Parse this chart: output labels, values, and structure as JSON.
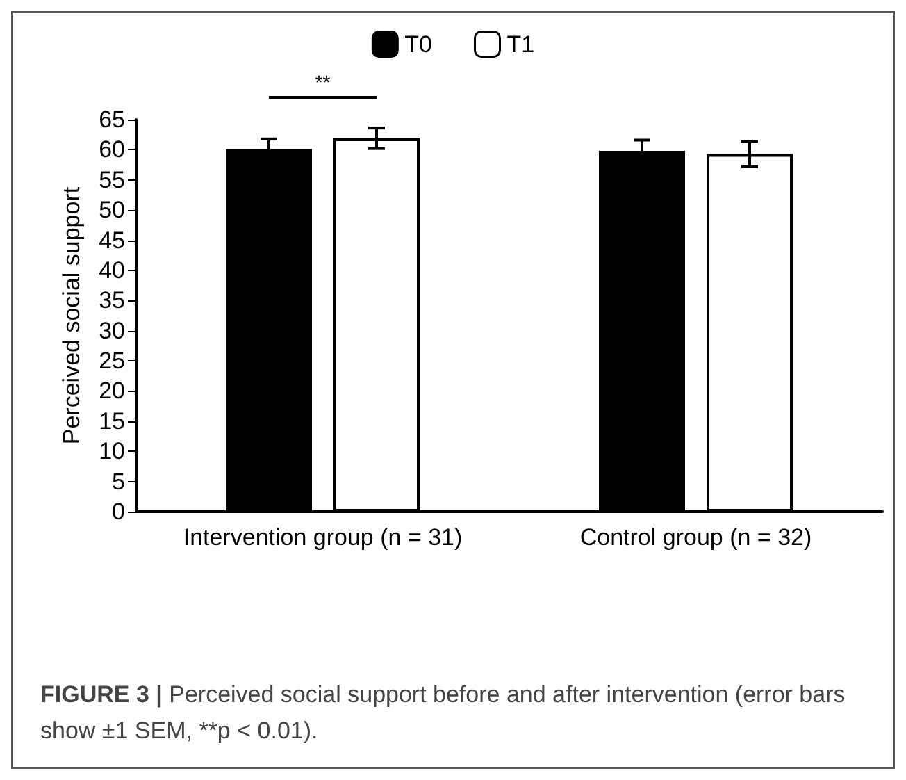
{
  "chart_data": {
    "type": "bar",
    "ylabel": "Perceived social support",
    "categories": [
      "Intervention group (n = 31)",
      "Control group (n = 32)"
    ],
    "series": [
      {
        "name": "T0",
        "color": "#000000",
        "values": [
          60.1,
          59.8
        ],
        "errors": [
          1.7,
          1.8
        ]
      },
      {
        "name": "T1",
        "color": "#ffffff",
        "values": [
          61.9,
          59.3
        ],
        "errors": [
          1.7,
          2.1
        ]
      }
    ],
    "ylim": [
      0,
      65
    ],
    "yticks": [
      0,
      5,
      10,
      15,
      20,
      25,
      30,
      35,
      40,
      45,
      50,
      55,
      60,
      65
    ],
    "grid": false,
    "legend": "top",
    "annotations": [
      "**",
      "FIGURE 3 | Perceived social support before and after intervention (error bars show ±1 SEM, **p < 0.01)."
    ]
  }
}
